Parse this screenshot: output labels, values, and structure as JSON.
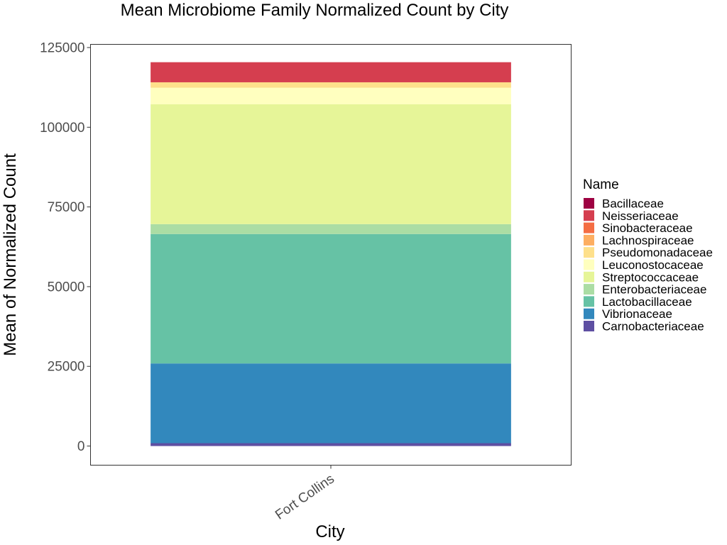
{
  "chart_data": {
    "type": "bar",
    "stacked": true,
    "title": "Mean Microbiome Family Normalized Count by City",
    "xlabel": "City",
    "ylabel": "Mean of Normalized Count",
    "categories": [
      "Fort Collins"
    ],
    "ylim": [
      -6000,
      126000
    ],
    "yticks": [
      0,
      25000,
      50000,
      75000,
      100000,
      125000
    ],
    "yticklabels": [
      "0",
      "25000",
      "50000",
      "75000",
      "100000",
      "125000"
    ],
    "legend_title": "Name",
    "legend_position": "right",
    "grid": false,
    "series": [
      {
        "name": "Bacillaceae",
        "color": "#9E0142",
        "values": [
          0
        ]
      },
      {
        "name": "Neisseriaceae",
        "color": "#D53E4F",
        "values": [
          6300
        ]
      },
      {
        "name": "Sinobacteraceae",
        "color": "#F46D43",
        "values": [
          0
        ]
      },
      {
        "name": "Lachnospiraceae",
        "color": "#FDAE61",
        "values": [
          0
        ]
      },
      {
        "name": "Pseudomonadaceae",
        "color": "#FEE08B",
        "values": [
          1700
        ]
      },
      {
        "name": "Leuconostocaceae",
        "color": "#FFFFBF",
        "values": [
          5200
        ]
      },
      {
        "name": "Streptococcaceae",
        "color": "#E6F598",
        "values": [
          37600
        ]
      },
      {
        "name": "Enterobacteriaceae",
        "color": "#ABDDA4",
        "values": [
          3100
        ]
      },
      {
        "name": "Lactobacillaceae",
        "color": "#66C2A5",
        "values": [
          40600
        ]
      },
      {
        "name": "Vibrionaceae",
        "color": "#3288BD",
        "values": [
          25000
        ]
      },
      {
        "name": "Carnobacteriaceae",
        "color": "#5E4FA2",
        "values": [
          900
        ]
      }
    ]
  }
}
